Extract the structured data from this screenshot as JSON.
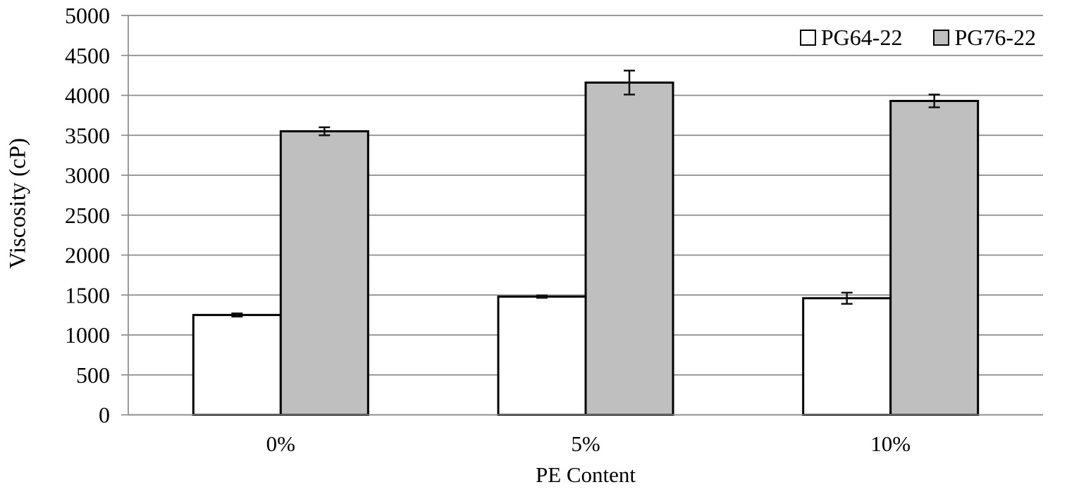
{
  "chart_data": {
    "type": "bar",
    "title": "",
    "xlabel": "PE Content",
    "ylabel": "Viscosity (cP)",
    "categories": [
      "0%",
      "5%",
      "10%"
    ],
    "series": [
      {
        "name": "PG64-22",
        "fill": "#ffffff",
        "values": [
          1250,
          1480,
          1460
        ],
        "errors": [
          20,
          15,
          70
        ]
      },
      {
        "name": "PG76-22",
        "fill": "#bfbfbf",
        "values": [
          3550,
          4160,
          3930
        ],
        "errors": [
          50,
          150,
          80
        ]
      }
    ],
    "ylim": [
      0,
      5000
    ],
    "ytick_step": 500,
    "yticks": [
      "0",
      "500",
      "1000",
      "1500",
      "2000",
      "2500",
      "3000",
      "3500",
      "4000",
      "4500",
      "5000"
    ],
    "grid": "horizontal",
    "legend_position": "top-right",
    "error_bars": true,
    "colors": {
      "gridline": "#8b8b8b",
      "bar_border": "#000000",
      "error_bar": "#111111",
      "text": "#000000",
      "background": "#ffffff"
    }
  }
}
